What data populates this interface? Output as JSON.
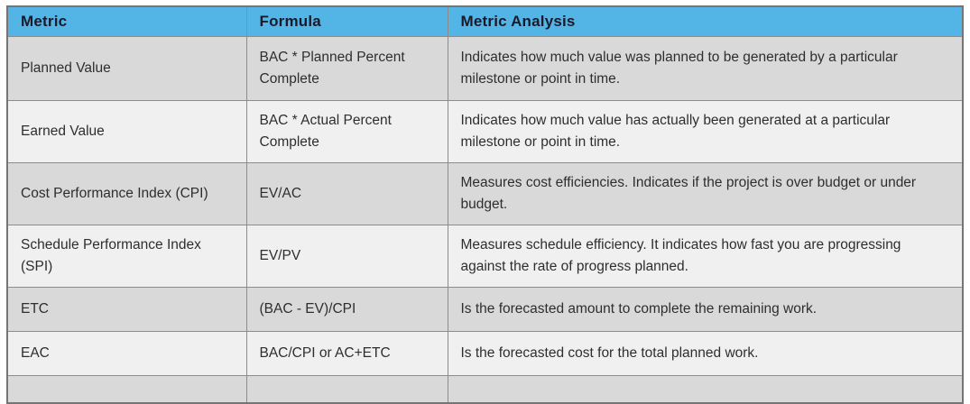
{
  "table": {
    "columns": [
      {
        "label": "Metric"
      },
      {
        "label": "Formula"
      },
      {
        "label": "Metric Analysis"
      }
    ],
    "rows": [
      {
        "metric": "Planned Value",
        "formula": "BAC * Planned Percent Complete",
        "analysis": "Indicates how much value was planned to be generated by a particular milestone or point in time."
      },
      {
        "metric": "Earned Value",
        "formula": "BAC * Actual Percent Complete",
        "analysis": "Indicates how much value has actually been generated at a particular milestone or point in time."
      },
      {
        "metric": "Cost Performance Index (CPI)",
        "formula": "EV/AC",
        "analysis": "Measures cost efficiencies. Indicates if the project is over budget or under budget."
      },
      {
        "metric": "Schedule Performance Index (SPI)",
        "formula": "EV/PV",
        "analysis": "Measures schedule efficiency. It indicates how fast you are progressing against the rate of progress planned."
      },
      {
        "metric": "ETC",
        "formula": "(BAC - EV)/CPI",
        "analysis": "Is the forecasted amount to complete the remaining work."
      },
      {
        "metric": "EAC",
        "formula": "BAC/CPI or AC+ETC",
        "analysis": "Is the forecasted cost for the total planned work."
      }
    ],
    "colors": {
      "header_bg": "#53b5e6",
      "header_text": "#1a1a2b",
      "row_odd_bg": "#d9d9d9",
      "row_even_bg": "#f0f0f0",
      "body_text": "#2e2e2e",
      "inner_border": "#8c8c8c",
      "outer_border": "#757575"
    }
  }
}
